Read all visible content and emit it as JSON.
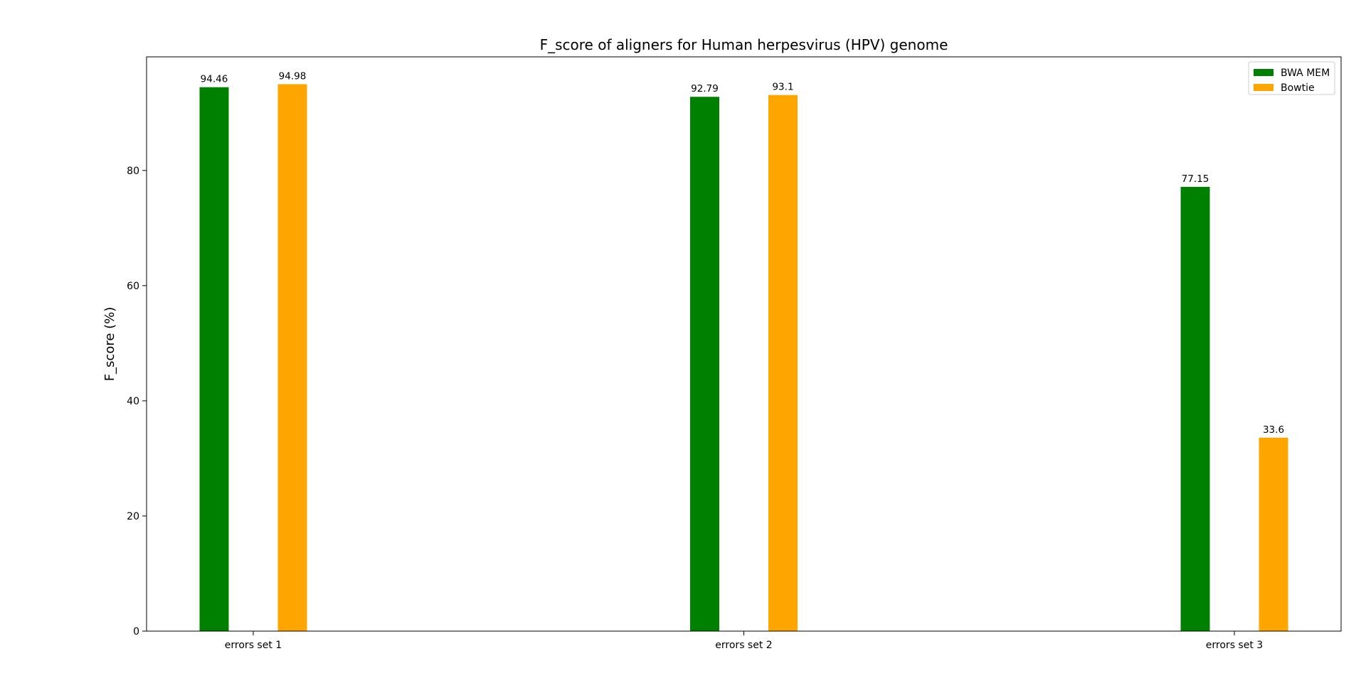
{
  "chart_data": {
    "type": "bar",
    "title": "F_score of aligners for Human herpesvirus (HPV) genome",
    "xlabel": "",
    "ylabel": "F_score (%)",
    "categories": [
      "errors set 1",
      "errors set 2",
      "errors set 3"
    ],
    "series": [
      {
        "name": "BWA MEM",
        "color": "#008000",
        "values": [
          94.46,
          92.79,
          77.15
        ],
        "labels": [
          "94.46",
          "92.79",
          "77.15"
        ]
      },
      {
        "name": "Bowtie",
        "color": "#ffa500",
        "values": [
          94.98,
          93.1,
          33.6
        ],
        "labels": [
          "94.98",
          "93.1",
          "33.6"
        ]
      }
    ],
    "ylim": [
      0,
      99.73
    ],
    "yticks": [
      0,
      20,
      40,
      60,
      80
    ],
    "grid": false,
    "legend": {
      "placement": "top-right"
    }
  }
}
